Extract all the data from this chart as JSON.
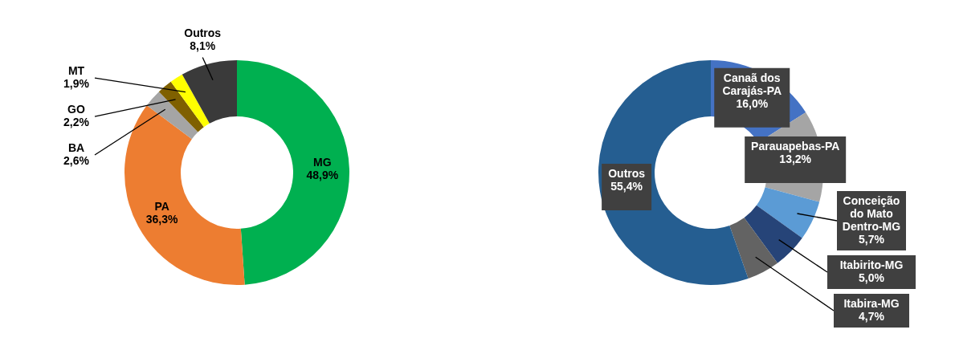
{
  "chart_data": [
    {
      "type": "donut",
      "categories": [
        "MG",
        "PA",
        "BA",
        "GO",
        "MT",
        "Outros"
      ],
      "values": [
        48.9,
        36.3,
        2.6,
        2.2,
        1.9,
        8.1
      ],
      "colors": [
        "#00b050",
        "#ed7d31",
        "#a5a5a5",
        "#7f6000",
        "#ffff00",
        "#3a3a3a"
      ],
      "value_labels": [
        "48,9%",
        "36,3%",
        "2,6%",
        "2,2%",
        "1,9%",
        "8,1%"
      ]
    },
    {
      "type": "donut",
      "categories": [
        "Canaã dos Carajás-PA",
        "Parauapebas-PA",
        "Conceição do Mato Dentro-MG",
        "Itabirito-MG",
        "Itabira-MG",
        "Outros"
      ],
      "values": [
        16.0,
        13.2,
        5.7,
        5.0,
        4.7,
        55.4
      ],
      "colors": [
        "#4472c4",
        "#a5a5a5",
        "#5b9bd5",
        "#264478",
        "#636363",
        "#255e91"
      ],
      "value_labels": [
        "16,0%",
        "13,2%",
        "5,7%",
        "5,0%",
        "4,7%",
        "55,4%"
      ]
    }
  ]
}
